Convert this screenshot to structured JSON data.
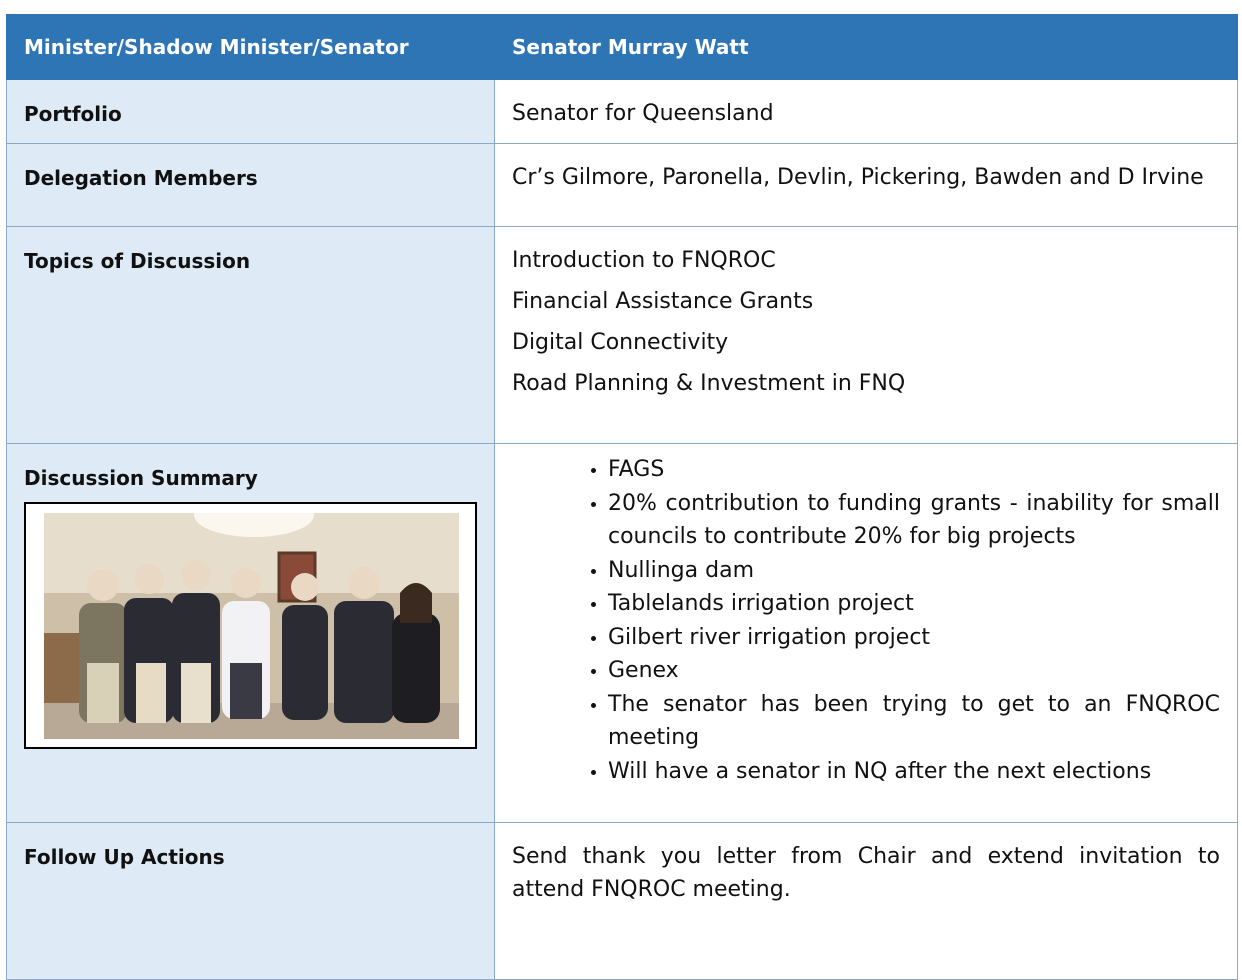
{
  "table": {
    "header": [
      "Minister/Shadow Minister/Senator",
      "Senator Murray Watt"
    ],
    "rows": [
      {
        "label": "Portfolio",
        "lines": [
          "Senator for Queensland"
        ]
      },
      {
        "label": "Delegation Members",
        "lines": [
          "Cr’s Gilmore, Paronella, Devlin, Pickering, Bawden and D Irvine"
        ]
      },
      {
        "label": "Topics of Discussion",
        "lines": [
          "Introduction to FNQROC",
          "Financial Assistance Grants",
          "Digital Connectivity",
          "Road Planning & Investment in FNQ"
        ]
      },
      {
        "label": "Discussion Summary",
        "bullets": [
          "FAGS",
          "20% contribution to funding grants - inability for small councils to contribute 20% for big projects",
          "Nullinga dam",
          "Tablelands irrigation project",
          "Gilbert river irrigation project",
          "Genex",
          "The senator has been trying to get to an FNQROC meeting",
          "Will have a senator in NQ after the next elections"
        ]
      },
      {
        "label": "Follow Up Actions",
        "lines": [
          "Send thank you letter from Chair and extend invitation to attend FNQROC meeting."
        ]
      }
    ]
  }
}
